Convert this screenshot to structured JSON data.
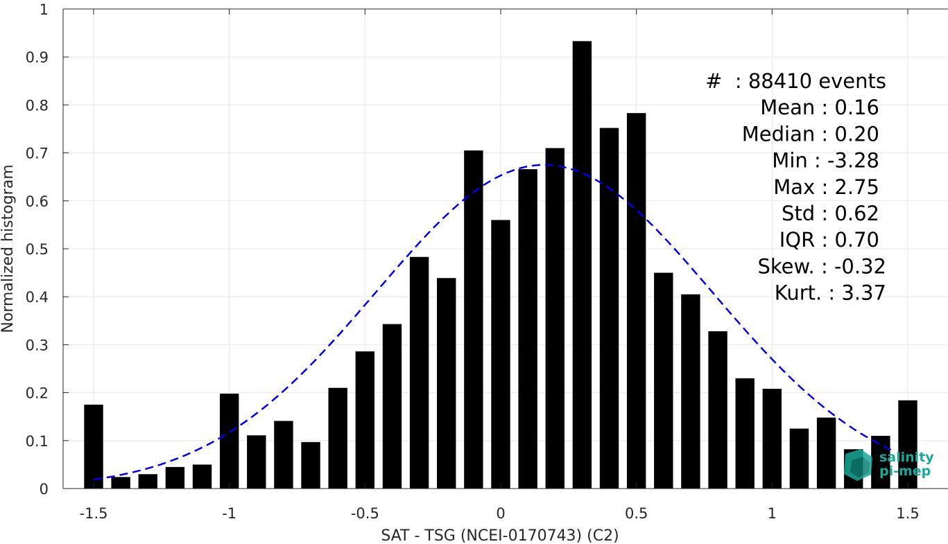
{
  "chart_data": {
    "type": "bar",
    "xlabel": "SAT - TSG (NCEI-0170743) (C2)",
    "ylabel": "Normalized histogram",
    "xlim": [
      -1.6,
      1.6
    ],
    "ylim": [
      0,
      1
    ],
    "xticks": [
      -1.5,
      -1,
      -0.5,
      0,
      0.5,
      1,
      1.5
    ],
    "xtick_labels": [
      "-1.5",
      "-1",
      "-0.5",
      "0",
      "0.5",
      "1",
      "1.5"
    ],
    "yticks": [
      0,
      0.1,
      0.2,
      0.3,
      0.4,
      0.5,
      0.6,
      0.7,
      0.8,
      0.9,
      1
    ],
    "ytick_labels": [
      "0",
      "0.1",
      "0.2",
      "0.3",
      "0.4",
      "0.5",
      "0.6",
      "0.7",
      "0.8",
      "0.9",
      "1"
    ],
    "grid": true,
    "bar_width": 0.07,
    "bar_color": "#000000",
    "bins": [
      {
        "x": -1.5,
        "y": 0.175
      },
      {
        "x": -1.4,
        "y": 0.024
      },
      {
        "x": -1.3,
        "y": 0.03
      },
      {
        "x": -1.2,
        "y": 0.045
      },
      {
        "x": -1.1,
        "y": 0.05
      },
      {
        "x": -1.0,
        "y": 0.198
      },
      {
        "x": -0.9,
        "y": 0.111
      },
      {
        "x": -0.8,
        "y": 0.141
      },
      {
        "x": -0.7,
        "y": 0.097
      },
      {
        "x": -0.6,
        "y": 0.21
      },
      {
        "x": -0.5,
        "y": 0.286
      },
      {
        "x": -0.4,
        "y": 0.343
      },
      {
        "x": -0.3,
        "y": 0.483
      },
      {
        "x": -0.2,
        "y": 0.439
      },
      {
        "x": -0.1,
        "y": 0.705
      },
      {
        "x": 0.0,
        "y": 0.56
      },
      {
        "x": 0.1,
        "y": 0.666
      },
      {
        "x": 0.2,
        "y": 0.71
      },
      {
        "x": 0.3,
        "y": 0.933
      },
      {
        "x": 0.4,
        "y": 0.752
      },
      {
        "x": 0.5,
        "y": 0.783
      },
      {
        "x": 0.6,
        "y": 0.45
      },
      {
        "x": 0.7,
        "y": 0.405
      },
      {
        "x": 0.8,
        "y": 0.328
      },
      {
        "x": 0.9,
        "y": 0.23
      },
      {
        "x": 1.0,
        "y": 0.208
      },
      {
        "x": 1.1,
        "y": 0.125
      },
      {
        "x": 1.2,
        "y": 0.148
      },
      {
        "x": 1.3,
        "y": 0.082
      },
      {
        "x": 1.4,
        "y": 0.11
      },
      {
        "x": 1.5,
        "y": 0.184
      }
    ],
    "fit_curve": {
      "color": "#0000ee",
      "style": "dashed",
      "mean": 0.16,
      "std": 0.62,
      "peak": 0.675,
      "x_range": [
        -1.5,
        1.45
      ]
    },
    "stats_lines": [
      "#  : 88410 events",
      "Mean : 0.16",
      "Median : 0.20",
      "Min : -3.28",
      "Max : 2.75",
      "Std : 0.62",
      "IQR : 0.70",
      "Skew. : -0.32",
      "Kurt. : 3.37"
    ],
    "logo": {
      "line1": "salinity",
      "line2": "pi-mep",
      "color": "#1aa89a"
    }
  }
}
